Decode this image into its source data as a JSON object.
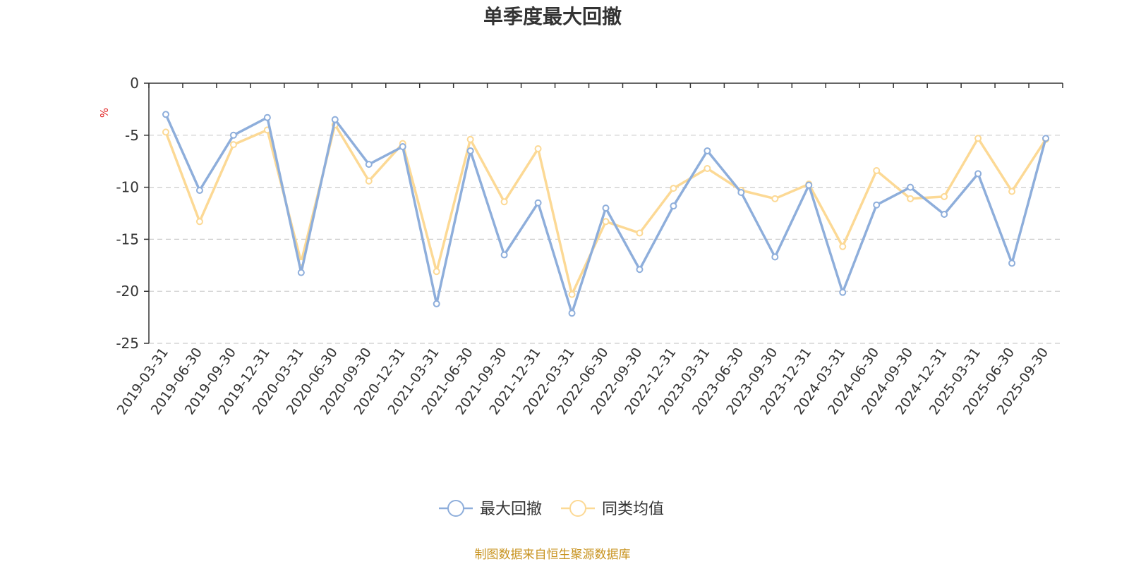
{
  "chart_data": {
    "type": "line",
    "title": "单季度最大回撤",
    "ylabel": "%",
    "ylim": [
      -25,
      0
    ],
    "yticks": [
      0,
      -5,
      -10,
      -15,
      -20,
      -25
    ],
    "grid": true,
    "legend_position": "bottom-center",
    "categories": [
      "2019-03-31",
      "2019-06-30",
      "2019-09-30",
      "2019-12-31",
      "2020-03-31",
      "2020-06-30",
      "2020-09-30",
      "2020-12-31",
      "2021-03-31",
      "2021-06-30",
      "2021-09-30",
      "2021-12-31",
      "2022-03-31",
      "2022-06-30",
      "2022-09-30",
      "2022-12-31",
      "2023-03-31",
      "2023-06-30",
      "2023-09-30",
      "2023-12-31",
      "2024-03-31",
      "2024-06-30",
      "2024-09-30",
      "2024-12-31",
      "2025-03-31",
      "2025-06-30",
      "2025-09-30"
    ],
    "series": [
      {
        "name": "最大回撤",
        "color": "#8eaedb",
        "values": [
          -3.0,
          -10.3,
          -5.0,
          -3.3,
          -18.2,
          -3.5,
          -7.8,
          -6.1,
          -21.2,
          -6.5,
          -16.5,
          -11.5,
          -22.1,
          -12.0,
          -17.9,
          -11.8,
          -6.5,
          -10.5,
          -16.7,
          -9.8,
          -20.1,
          -11.7,
          -10.0,
          -12.6,
          -8.7,
          -17.3,
          -5.3
        ]
      },
      {
        "name": "同类均值",
        "color": "#fcd995",
        "values": [
          -4.7,
          -13.3,
          -5.9,
          -4.5,
          -17.2,
          -4.0,
          -9.4,
          -5.8,
          -18.1,
          -5.4,
          -11.4,
          -6.3,
          -20.3,
          -13.3,
          -14.4,
          -10.1,
          -8.2,
          -10.3,
          -11.1,
          -9.7,
          -15.7,
          -8.4,
          -11.1,
          -10.9,
          -5.3,
          -10.4,
          -5.4
        ]
      }
    ],
    "source": "制图数据来自恒生聚源数据库",
    "unit_color": "#e02020",
    "source_color": "#c8931f",
    "axis_color": "#333333",
    "grid_color": "#cccccc"
  }
}
